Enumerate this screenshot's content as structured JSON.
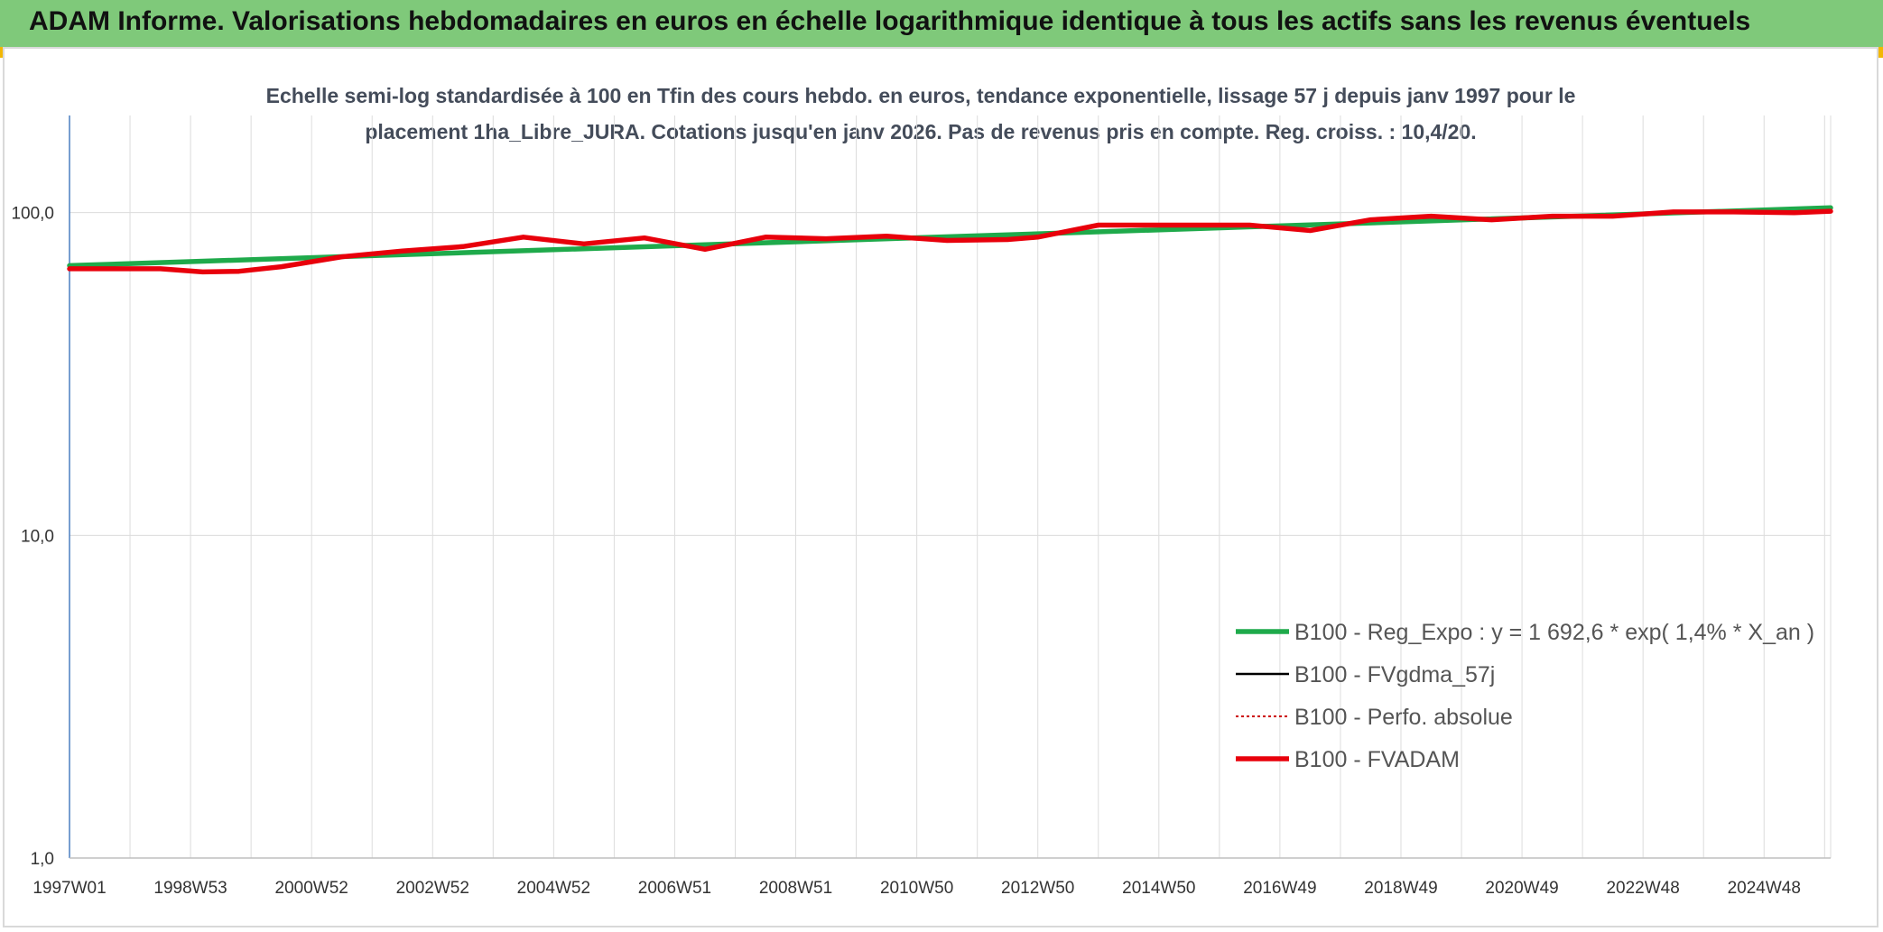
{
  "banner": {
    "title": "ADAM Informe. Valorisations hebdomadaires en euros en échelle logarithmique identique à tous les actifs sans les revenus éventuels"
  },
  "colors": {
    "banner_bg": "#7fc97a",
    "corner": "#f2b705",
    "reg_expo": "#1faa4b",
    "fvgdma": "#000000",
    "perfo": "#cc0000",
    "fvadam": "#e8000b",
    "grid": "#dcdcdc",
    "axis": "#4a7fc1"
  },
  "chart_data": {
    "type": "line",
    "title": "Echelle semi-log standardisée à 100 en Tfin des cours hebdo. en euros, tendance exponentielle, lissage 57 j depuis janv 1997 pour le placement 1ha_Libre_JURA. Cotations jusqu'en janv 2026. Pas de revenus pris en compte. Reg. croiss. : 10,4/20.",
    "yscale": "log",
    "ylim": [
      1,
      200
    ],
    "ytick_labels": [
      "1,0",
      "10,0",
      "100,0"
    ],
    "yticks": [
      1,
      10,
      100
    ],
    "xlim": [
      1997.0,
      2026.1
    ],
    "xtick_labels": [
      "1997W01",
      "1998W53",
      "2000W52",
      "2002W52",
      "2004W52",
      "2006W51",
      "2008W51",
      "2010W50",
      "2012W50",
      "2014W50",
      "2016W49",
      "2018W49",
      "2020W49",
      "2022W48",
      "2024W48"
    ],
    "xticks": [
      1997.0,
      1999.0,
      2001.0,
      2003.0,
      2005.0,
      2007.0,
      2009.0,
      2011.0,
      2013.0,
      2015.0,
      2017.0,
      2019.0,
      2021.0,
      2023.0,
      2025.0
    ],
    "grid": true,
    "legend_position": "bottom-right",
    "series": [
      {
        "name": "B100 - Reg_Expo : y = 1 692,6 * exp( 1,4% *  X_an )",
        "style": "solid-thick",
        "color": "#1faa4b",
        "x": [
          1997.0,
          2026.1
        ],
        "y": [
          68.5,
          103.5
        ]
      },
      {
        "name": "B100 - FVgdma_57j",
        "style": "solid-thin",
        "color": "#000000",
        "x": [],
        "y": []
      },
      {
        "name": "B100 - Perfo. absolue",
        "style": "dotted",
        "color": "#cc0000",
        "x": [],
        "y": []
      },
      {
        "name": "B100 - FVADAM",
        "style": "solid-thick",
        "color": "#e8000b",
        "x": [
          1997.0,
          1998.0,
          1998.5,
          1999.2,
          1999.8,
          2000.5,
          2001.5,
          2002.5,
          2003.5,
          2004.5,
          2005.5,
          2006.5,
          2007.5,
          2008.5,
          2009.5,
          2010.5,
          2011.5,
          2012.5,
          2013.0,
          2014.0,
          2015.0,
          2016.5,
          2017.5,
          2018.5,
          2019.5,
          2020.5,
          2021.5,
          2022.5,
          2023.5,
          2024.5,
          2025.5,
          2026.1
        ],
        "y": [
          67,
          67,
          67,
          65.5,
          65.8,
          68,
          73,
          76,
          78.5,
          84,
          80,
          83.5,
          77,
          84,
          83,
          84.5,
          82,
          82.5,
          84,
          91.5,
          91.5,
          91.5,
          88,
          95,
          97.5,
          95,
          97.5,
          97.5,
          100.5,
          100.5,
          100,
          101
        ]
      }
    ]
  }
}
